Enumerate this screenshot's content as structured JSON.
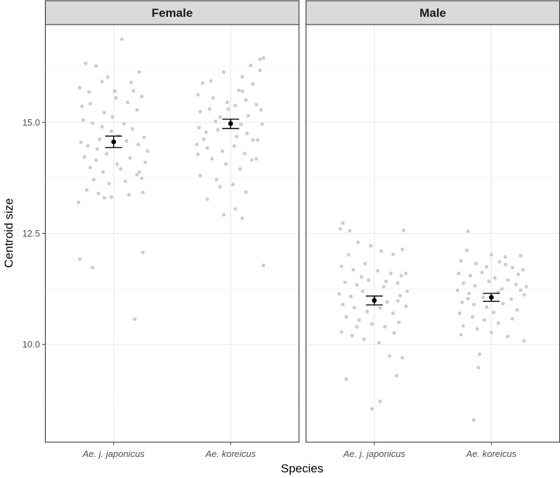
{
  "chart_data": {
    "type": "scatter",
    "xlabel": "Species",
    "ylabel": "Centroid size",
    "categories": [
      "Ae. j. japonicus",
      "Ae. koreicus"
    ],
    "ylim": [
      7.8,
      17.2
    ],
    "y_ticks": [
      10.0,
      12.5,
      15.0
    ],
    "y_tick_labels": [
      "10.0",
      "12.5",
      "15.0"
    ],
    "panels": [
      {
        "label": "Female",
        "groups": [
          {
            "category": "Ae. j. japonicus",
            "mean": 14.56,
            "se_low": 14.43,
            "se_high": 14.69,
            "points": [
              [
                -0.29,
                15.78
              ],
              [
                -0.21,
                15.68
              ],
              [
                -0.24,
                16.33
              ],
              [
                -0.15,
                16.27
              ],
              [
                -0.05,
                16.02
              ],
              [
                0.07,
                16.87
              ],
              [
                0.22,
                16.13
              ],
              [
                0.17,
                15.71
              ],
              [
                0.24,
                15.58
              ],
              [
                -0.27,
                15.36
              ],
              [
                -0.2,
                15.42
              ],
              [
                -0.08,
                15.22
              ],
              [
                0.02,
                15.55
              ],
              [
                0.12,
                15.45
              ],
              [
                0.2,
                15.28
              ],
              [
                -0.26,
                15.05
              ],
              [
                -0.18,
                14.98
              ],
              [
                -0.1,
                14.9
              ],
              [
                -0.01,
                15.12
              ],
              [
                0.09,
                14.97
              ],
              [
                0.16,
                14.85
              ],
              [
                0.26,
                14.66
              ],
              [
                -0.28,
                14.55
              ],
              [
                -0.22,
                14.47
              ],
              [
                -0.12,
                14.62
              ],
              [
                0.04,
                14.7
              ],
              [
                0.11,
                14.58
              ],
              [
                0.21,
                14.5
              ],
              [
                0.29,
                14.35
              ],
              [
                -0.25,
                14.22
              ],
              [
                -0.15,
                14.15
              ],
              [
                -0.06,
                14.29
              ],
              [
                0.03,
                14.06
              ],
              [
                0.14,
                14.2
              ],
              [
                0.27,
                14.1
              ],
              [
                -0.2,
                13.98
              ],
              [
                -0.09,
                13.88
              ],
              [
                0.06,
                13.95
              ],
              [
                0.2,
                13.82
              ],
              [
                -0.17,
                13.71
              ],
              [
                -0.04,
                13.62
              ],
              [
                0.1,
                13.67
              ],
              [
                0.24,
                13.74
              ],
              [
                -0.23,
                13.48
              ],
              [
                -0.13,
                13.4
              ],
              [
                -0.02,
                13.32
              ],
              [
                0.13,
                13.37
              ],
              [
                0.25,
                13.42
              ],
              [
                -0.3,
                13.2
              ],
              [
                -0.08,
                13.3
              ],
              [
                -0.29,
                11.92
              ],
              [
                -0.18,
                11.73
              ],
              [
                0.25,
                12.07
              ],
              [
                0.18,
                10.57
              ],
              [
                -0.1,
                15.92
              ],
              [
                0.01,
                15.7
              ],
              [
                0.15,
                15.9
              ],
              [
                -0.02,
                14.8
              ],
              [
                -0.14,
                14.4
              ],
              [
                0.22,
                13.88
              ]
            ]
          },
          {
            "category": "Ae. koreicus",
            "mean": 14.97,
            "se_low": 14.86,
            "se_high": 15.07,
            "points": [
              [
                -0.24,
                15.88
              ],
              [
                -0.17,
                15.93
              ],
              [
                -0.06,
                16.13
              ],
              [
                0.1,
                16.03
              ],
              [
                0.17,
                16.28
              ],
              [
                0.28,
                16.45
              ],
              [
                0.25,
                16.17
              ],
              [
                0.19,
                15.86
              ],
              [
                0.07,
                15.72
              ],
              [
                -0.28,
                15.62
              ],
              [
                -0.15,
                15.55
              ],
              [
                -0.03,
                15.45
              ],
              [
                0.04,
                15.38
              ],
              [
                0.13,
                15.5
              ],
              [
                0.22,
                15.4
              ],
              [
                -0.26,
                15.24
              ],
              [
                -0.18,
                15.3
              ],
              [
                -0.09,
                15.12
              ],
              [
                0.0,
                15.02
              ],
              [
                0.09,
                14.95
              ],
              [
                0.15,
                15.15
              ],
              [
                0.26,
                15.28
              ],
              [
                -0.27,
                14.88
              ],
              [
                -0.21,
                14.78
              ],
              [
                -0.11,
                14.83
              ],
              [
                0.05,
                14.68
              ],
              [
                0.14,
                14.75
              ],
              [
                0.23,
                14.6
              ],
              [
                -0.29,
                14.5
              ],
              [
                -0.2,
                14.42
              ],
              [
                -0.07,
                14.35
              ],
              [
                0.03,
                14.47
              ],
              [
                0.12,
                14.3
              ],
              [
                0.22,
                14.18
              ],
              [
                -0.28,
                14.28
              ],
              [
                -0.16,
                14.18
              ],
              [
                -0.04,
                14.06
              ],
              [
                0.08,
                13.95
              ],
              [
                0.18,
                14.15
              ],
              [
                -0.26,
                13.8
              ],
              [
                -0.12,
                13.71
              ],
              [
                0.02,
                13.6
              ],
              [
                -0.09,
                13.55
              ],
              [
                0.13,
                13.43
              ],
              [
                -0.2,
                13.27
              ],
              [
                0.04,
                13.05
              ],
              [
                -0.06,
                12.92
              ],
              [
                0.1,
                12.84
              ],
              [
                0.28,
                11.78
              ],
              [
                0.25,
                16.42
              ],
              [
                -0.13,
                15.02
              ],
              [
                0.27,
                14.96
              ],
              [
                -0.02,
                15.3
              ],
              [
                0.19,
                14.6
              ],
              [
                0.1,
                15.7
              ],
              [
                -0.23,
                14.62
              ]
            ]
          }
        ]
      },
      {
        "label": "Male",
        "groups": [
          {
            "category": "Ae. j. japonicus",
            "mean": 10.99,
            "se_low": 10.89,
            "se_high": 11.09,
            "points": [
              [
                -0.27,
                12.73
              ],
              [
                -0.29,
                12.6
              ],
              [
                -0.21,
                12.56
              ],
              [
                0.25,
                12.57
              ],
              [
                -0.14,
                12.3
              ],
              [
                -0.03,
                12.22
              ],
              [
                0.06,
                12.1
              ],
              [
                0.16,
                12.03
              ],
              [
                -0.22,
                12.02
              ],
              [
                0.24,
                12.14
              ],
              [
                -0.28,
                11.76
              ],
              [
                -0.18,
                11.68
              ],
              [
                -0.08,
                11.82
              ],
              [
                0.03,
                11.66
              ],
              [
                0.14,
                11.6
              ],
              [
                0.23,
                11.55
              ],
              [
                -0.25,
                11.4
              ],
              [
                -0.15,
                11.34
              ],
              [
                -0.05,
                11.45
              ],
              [
                0.08,
                11.3
              ],
              [
                0.2,
                11.38
              ],
              [
                0.28,
                11.2
              ],
              [
                -0.3,
                11.14
              ],
              [
                -0.2,
                11.08
              ],
              [
                -0.1,
                11.2
              ],
              [
                0.0,
                11.04
              ],
              [
                0.11,
                10.96
              ],
              [
                0.22,
                11.1
              ],
              [
                -0.27,
                10.9
              ],
              [
                -0.17,
                10.83
              ],
              [
                -0.06,
                10.74
              ],
              [
                0.05,
                10.82
              ],
              [
                0.16,
                10.7
              ],
              [
                0.27,
                10.86
              ],
              [
                -0.24,
                10.62
              ],
              [
                -0.13,
                10.55
              ],
              [
                -0.02,
                10.46
              ],
              [
                0.09,
                10.4
              ],
              [
                0.21,
                10.5
              ],
              [
                -0.28,
                10.28
              ],
              [
                -0.19,
                10.2
              ],
              [
                -0.09,
                10.12
              ],
              [
                0.04,
                10.04
              ],
              [
                0.17,
                10.26
              ],
              [
                0.13,
                9.74
              ],
              [
                0.24,
                9.7
              ],
              [
                0.19,
                9.3
              ],
              [
                -0.24,
                9.22
              ],
              [
                0.05,
                8.72
              ],
              [
                -0.02,
                8.55
              ],
              [
                -0.11,
                11.52
              ],
              [
                0.1,
                11.42
              ],
              [
                0.27,
                11.6
              ],
              [
                -0.15,
                10.4
              ],
              [
                0.2,
                10.98
              ]
            ]
          },
          {
            "category": "Ae. koreicus",
            "mean": 11.06,
            "se_low": 10.97,
            "se_high": 11.15,
            "points": [
              [
                -0.2,
                12.55
              ],
              [
                -0.21,
                12.12
              ],
              [
                0.0,
                12.02
              ],
              [
                0.12,
                11.97
              ],
              [
                0.25,
                12.0
              ],
              [
                -0.26,
                11.88
              ],
              [
                -0.13,
                11.82
              ],
              [
                -0.04,
                11.75
              ],
              [
                0.07,
                11.86
              ],
              [
                0.18,
                11.73
              ],
              [
                0.27,
                11.68
              ],
              [
                -0.28,
                11.6
              ],
              [
                -0.18,
                11.55
              ],
              [
                -0.08,
                11.62
              ],
              [
                0.03,
                11.5
              ],
              [
                0.14,
                11.45
              ],
              [
                0.23,
                11.58
              ],
              [
                -0.24,
                11.38
              ],
              [
                -0.14,
                11.32
              ],
              [
                -0.02,
                11.42
              ],
              [
                0.09,
                11.25
              ],
              [
                0.21,
                11.35
              ],
              [
                0.3,
                11.3
              ],
              [
                -0.29,
                11.22
              ],
              [
                -0.19,
                11.15
              ],
              [
                -0.07,
                11.06
              ],
              [
                0.06,
                11.18
              ],
              [
                0.17,
                11.02
              ],
              [
                0.28,
                11.12
              ],
              [
                -0.25,
                10.95
              ],
              [
                -0.15,
                10.9
              ],
              [
                -0.04,
                10.84
              ],
              [
                0.1,
                10.92
              ],
              [
                0.22,
                10.78
              ],
              [
                -0.27,
                10.7
              ],
              [
                -0.16,
                10.62
              ],
              [
                -0.06,
                10.55
              ],
              [
                0.06,
                10.48
              ],
              [
                0.18,
                10.58
              ],
              [
                -0.24,
                10.42
              ],
              [
                -0.12,
                10.35
              ],
              [
                0.0,
                10.27
              ],
              [
                0.14,
                10.18
              ],
              [
                0.28,
                10.08
              ],
              [
                -0.26,
                10.22
              ],
              [
                -0.1,
                9.78
              ],
              [
                -0.11,
                9.48
              ],
              [
                -0.15,
                8.3
              ],
              [
                0.25,
                11.22
              ],
              [
                -0.2,
                11.03
              ],
              [
                0.12,
                11.8
              ],
              [
                0.02,
                10.72
              ]
            ]
          }
        ]
      }
    ]
  },
  "colors": {
    "point": "#c8c8c8",
    "summary": "#000000",
    "grid_major": "#ebebeb",
    "grid_minor": "#f4f4f4",
    "strip_fill": "#d9d9d9",
    "border": "#333333"
  }
}
